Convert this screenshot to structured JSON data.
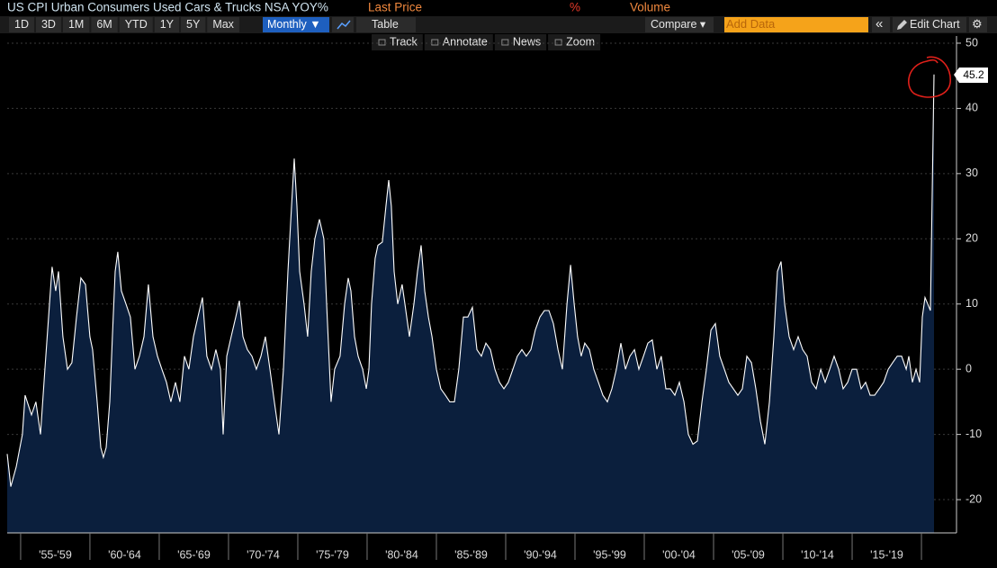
{
  "header": {
    "legend_unit": "%",
    "volume": "Volume"
  },
  "toolbar": {
    "ranges": [
      "1D",
      "3D",
      "1M",
      "6M",
      "YTD",
      "1Y",
      "5Y",
      "Max"
    ],
    "frequency": "Monthly ▼",
    "table": "Table",
    "compare": "Compare ▾",
    "add_data": "Add Data",
    "collapse": "«",
    "edit_chart": "Edit Chart",
    "gear": "⚙"
  },
  "tools": [
    "Track",
    "Annotate",
    "News",
    "Zoom"
  ],
  "chart_data": {
    "type": "area",
    "title": "US CPI Urban Consumers Used Cars & Trucks NSA YOY%",
    "x": [
      1954.03,
      1954.29,
      1954.68,
      1955.13,
      1955.32,
      1955.78,
      1956.1,
      1956.43,
      1956.75,
      1957.08,
      1957.27,
      1957.53,
      1957.73,
      1958.05,
      1958.38,
      1958.7,
      1959.03,
      1959.35,
      1959.68,
      1960.0,
      1960.19,
      1960.52,
      1960.78,
      1960.97,
      1961.17,
      1961.43,
      1961.62,
      1961.82,
      1962.01,
      1962.27,
      1962.6,
      1962.92,
      1963.25,
      1963.57,
      1963.9,
      1964.22,
      1964.55,
      1964.87,
      1965.19,
      1965.52,
      1965.84,
      1966.17,
      1966.49,
      1966.82,
      1967.14,
      1967.47,
      1967.79,
      1968.12,
      1968.44,
      1968.77,
      1969.09,
      1969.42,
      1969.61,
      1969.87,
      1970.19,
      1970.52,
      1970.78,
      1971.04,
      1971.36,
      1971.69,
      1972.01,
      1972.34,
      1972.66,
      1972.99,
      1973.31,
      1973.64,
      1973.96,
      1974.29,
      1974.55,
      1974.74,
      1974.94,
      1975.13,
      1975.45,
      1975.71,
      1975.97,
      1976.23,
      1976.56,
      1976.88,
      1977.08,
      1977.4,
      1977.66,
      1978.05,
      1978.38,
      1978.64,
      1978.83,
      1979.09,
      1979.35,
      1979.68,
      1979.94,
      1980.13,
      1980.32,
      1980.58,
      1980.78,
      1981.1,
      1981.36,
      1981.56,
      1981.75,
      1981.95,
      1982.21,
      1982.53,
      1982.73,
      1983.05,
      1983.38,
      1983.64,
      1983.9,
      1984.16,
      1984.42,
      1984.68,
      1985.0,
      1985.32,
      1985.65,
      1985.97,
      1986.3,
      1986.62,
      1986.95,
      1987.27,
      1987.6,
      1987.92,
      1988.25,
      1988.57,
      1988.9,
      1989.22,
      1989.55,
      1989.87,
      1990.19,
      1990.52,
      1990.84,
      1991.17,
      1991.49,
      1991.82,
      1992.14,
      1992.47,
      1992.79,
      1993.12,
      1993.44,
      1993.77,
      1994.09,
      1994.42,
      1994.68,
      1994.94,
      1995.19,
      1995.45,
      1995.71,
      1996.04,
      1996.36,
      1996.69,
      1997.01,
      1997.34,
      1997.66,
      1997.99,
      1998.31,
      1998.64,
      1998.96,
      1999.29,
      1999.61,
      1999.94,
      2000.26,
      2000.58,
      2000.91,
      2001.23,
      2001.56,
      2001.88,
      2002.21,
      2002.53,
      2002.86,
      2003.18,
      2003.51,
      2003.83,
      2004.16,
      2004.48,
      2004.81,
      2005.13,
      2005.45,
      2005.78,
      2006.1,
      2006.43,
      2006.75,
      2007.08,
      2007.4,
      2007.73,
      2008.05,
      2008.38,
      2008.7,
      2009.03,
      2009.35,
      2009.61,
      2009.87,
      2010.13,
      2010.45,
      2010.78,
      2011.1,
      2011.43,
      2011.75,
      2012.08,
      2012.4,
      2012.73,
      2013.05,
      2013.38,
      2013.7,
      2014.03,
      2014.35,
      2014.68,
      2015.0,
      2015.32,
      2015.65,
      2015.97,
      2016.3,
      2016.62,
      2016.95,
      2017.27,
      2017.6,
      2017.92,
      2018.25,
      2018.57,
      2018.9,
      2019.09,
      2019.35,
      2019.61,
      2019.87,
      2020.06,
      2020.26,
      2020.45,
      2020.65,
      2020.91
    ],
    "series": [
      {
        "name": "Last Price",
        "color": "#ffffff",
        "fill": "#0b1f3d",
        "values": [
          -13,
          -18,
          -15,
          -10,
          -4,
          -7,
          -5,
          -10,
          0,
          10,
          15.7,
          12,
          15,
          5,
          0,
          1,
          8,
          14,
          13,
          5,
          3,
          -5,
          -12,
          -13.5,
          -12,
          -5,
          5,
          15,
          18,
          12,
          10,
          8,
          0,
          2,
          5,
          13,
          5,
          2,
          0,
          -2,
          -5,
          -2,
          -5,
          2,
          0,
          5,
          8,
          11,
          2,
          0,
          3,
          0,
          -10,
          2,
          5,
          8,
          10.5,
          5,
          3,
          2,
          0,
          2,
          5,
          0,
          -5,
          -10,
          0,
          15,
          25,
          32.3,
          25,
          15,
          10,
          5,
          15,
          20,
          23,
          20,
          10,
          -5,
          0,
          2,
          10,
          14,
          12,
          5,
          2,
          0,
          -3,
          0,
          10,
          17,
          19,
          19.5,
          25,
          29,
          25,
          15,
          10,
          13,
          10,
          5,
          10,
          15,
          19,
          12,
          8,
          5,
          0,
          -3,
          -4,
          -5,
          -5,
          0,
          8,
          8,
          9.5,
          3,
          2,
          4,
          3,
          0,
          -2,
          -3,
          -2,
          0,
          2,
          3,
          2,
          3,
          6,
          8,
          9,
          9,
          7,
          3,
          0,
          10,
          16,
          10,
          5,
          2,
          4,
          3,
          0,
          -2,
          -4,
          -5,
          -3,
          0,
          4,
          0,
          2,
          3,
          0,
          2,
          4,
          4.5,
          0,
          2,
          -3,
          -3,
          -4,
          -2,
          -5,
          -10,
          -11.5,
          -11,
          -5,
          0,
          6,
          7,
          2,
          0,
          -2,
          -3,
          -4,
          -3,
          2,
          1,
          -3,
          -8,
          -11.5,
          -5,
          5,
          15,
          16.5,
          10,
          5,
          3,
          5,
          3,
          2,
          -2,
          -3,
          0,
          -2,
          0,
          2,
          0,
          -3,
          -2,
          0,
          0,
          -3,
          -2,
          -4,
          -4,
          -3,
          -2,
          0,
          1,
          2,
          2,
          0,
          2,
          -2,
          0,
          -2,
          8,
          11,
          10,
          9,
          45.2
        ]
      }
    ],
    "xlim": [
      1954.03,
      2022.53
    ],
    "xticks": [
      {
        "value": 1957.5,
        "label": "'55-'59"
      },
      {
        "value": 1962.5,
        "label": "'60-'64"
      },
      {
        "value": 1967.5,
        "label": "'65-'69"
      },
      {
        "value": 1972.5,
        "label": "'70-'74"
      },
      {
        "value": 1977.5,
        "label": "'75-'79"
      },
      {
        "value": 1982.5,
        "label": "'80-'84"
      },
      {
        "value": 1987.5,
        "label": "'85-'89"
      },
      {
        "value": 1992.5,
        "label": "'90-'94"
      },
      {
        "value": 1997.5,
        "label": "'95-'99"
      },
      {
        "value": 2002.5,
        "label": "'00-'04"
      },
      {
        "value": 2007.5,
        "label": "'05-'09"
      },
      {
        "value": 2012.5,
        "label": "'10-'14"
      },
      {
        "value": 2017.5,
        "label": "'15-'19"
      }
    ],
    "ylim": [
      -25.1,
      51.1
    ],
    "yticks": [
      -20,
      -10,
      0,
      10,
      20,
      30,
      40,
      50
    ],
    "grid": true
  }
}
